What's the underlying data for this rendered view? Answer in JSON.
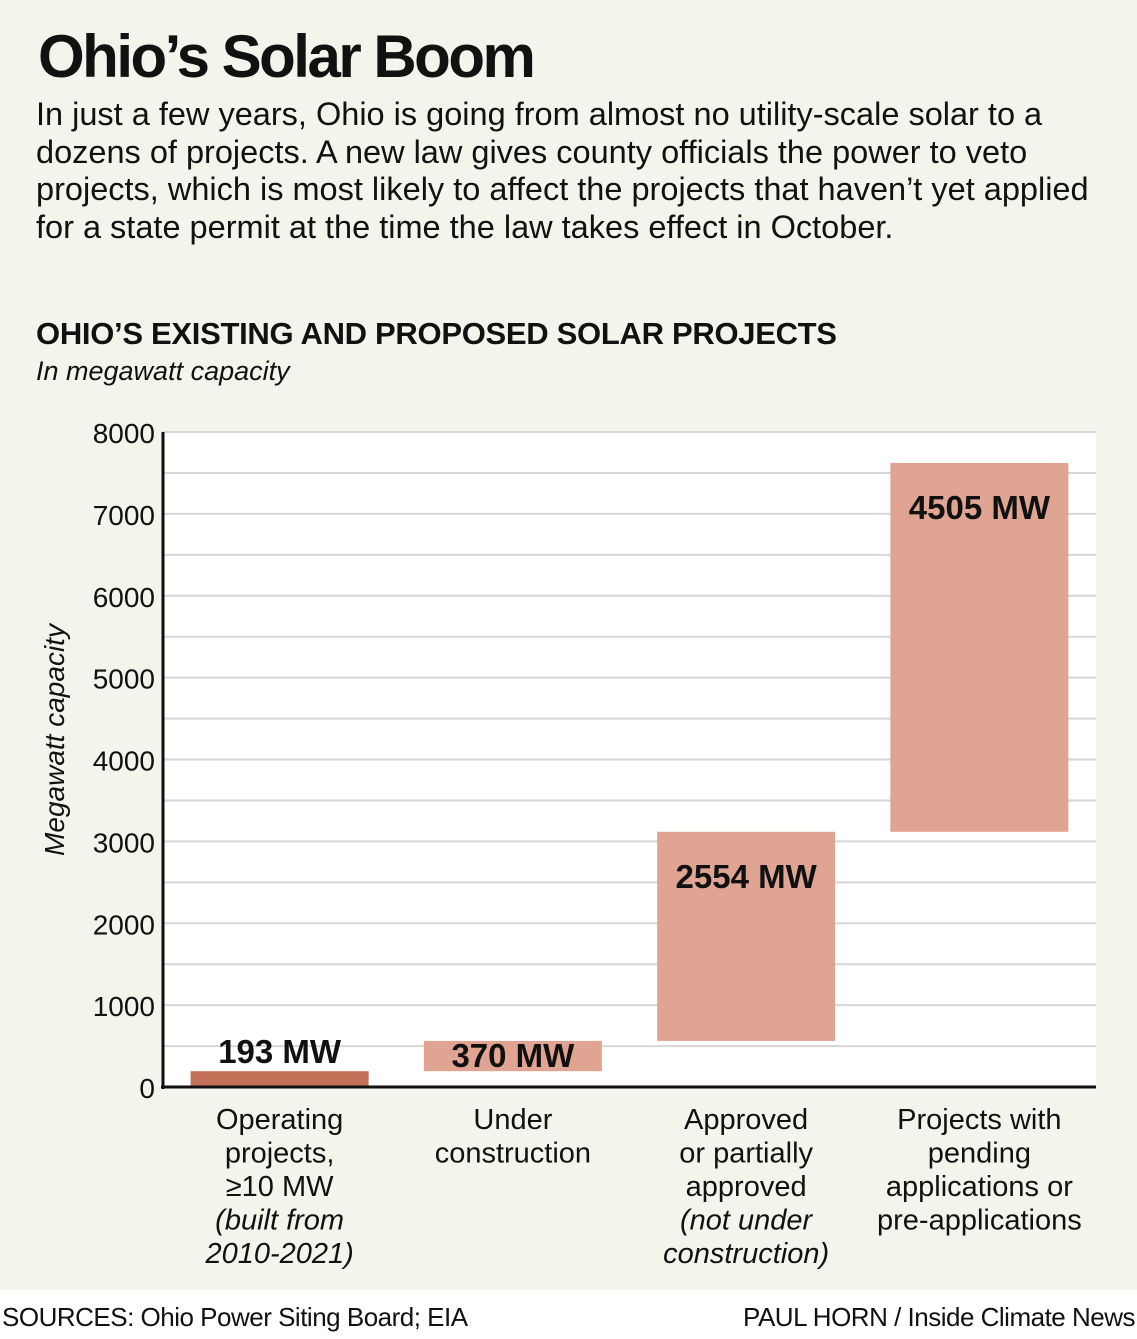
{
  "title": "Ohio’s Solar Boom",
  "intro": "In just a few years, Ohio is going from almost no utility-scale solar to a dozens of projects. A new law gives county officials the power to veto projects, which is most likely to affect the projects that haven’t yet applied for a state permit at the time the law takes effect in October.",
  "footer": {
    "sources": "SOURCES: Ohio Power Siting Board; EIA",
    "credit": "PAUL HORN / Inside Climate News"
  },
  "chart_data": {
    "type": "waterfall",
    "title": "OHIO’S EXISTING AND PROPOSED SOLAR PROJECTS",
    "subtitle": "In megawatt capacity",
    "ylabel": "Megawatt capacity",
    "ylim": [
      0,
      8000
    ],
    "yticks": [
      "0",
      "1000",
      "2000",
      "3000",
      "4000",
      "5000",
      "6000",
      "7000",
      "8000"
    ],
    "grid": true,
    "categories": [
      {
        "lines": [
          "Operating",
          "projects,",
          "≥10 MW"
        ],
        "italic_lines": [
          "(built from",
          "2010-2021)"
        ]
      },
      {
        "lines": [
          "Under",
          "construction"
        ],
        "italic_lines": []
      },
      {
        "lines": [
          "Approved",
          "or partially",
          "approved"
        ],
        "italic_lines": [
          "(not under",
          "construction)"
        ]
      },
      {
        "lines": [
          "Projects with",
          "pending",
          "applications or",
          "pre-applications"
        ],
        "italic_lines": []
      }
    ],
    "values": [
      193,
      370,
      2554,
      4505
    ],
    "data_labels": [
      "193 MW",
      "370 MW",
      "2554 MW",
      "4505 MW"
    ],
    "colors": [
      "#c4715a",
      "#e0a492",
      "#e0a492",
      "#e0a492"
    ]
  }
}
